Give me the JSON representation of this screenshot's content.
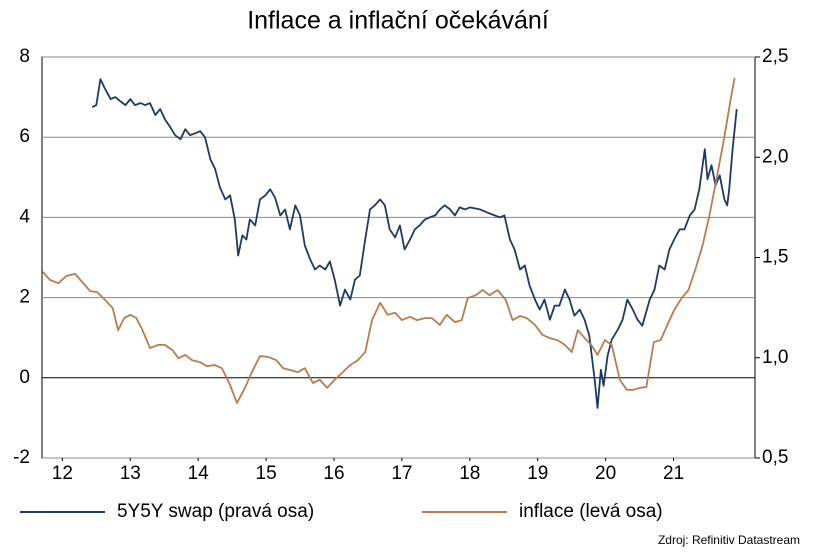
{
  "chart_data": {
    "type": "line",
    "title": "Inflace a inflační očekávání",
    "source": "Zdroj: Refinitiv Datastream",
    "xlim": [
      12.2,
      22.7
    ],
    "xticks": [
      {
        "value": 12.5,
        "label": "12"
      },
      {
        "value": 13.5,
        "label": "13"
      },
      {
        "value": 14.5,
        "label": "14"
      },
      {
        "value": 15.5,
        "label": "15"
      },
      {
        "value": 16.5,
        "label": "16"
      },
      {
        "value": 17.5,
        "label": "17"
      },
      {
        "value": 18.5,
        "label": "18"
      },
      {
        "value": 19.5,
        "label": "19"
      },
      {
        "value": 20.5,
        "label": "20"
      },
      {
        "value": 21.5,
        "label": "21"
      }
    ],
    "ylim": [
      -2,
      8
    ],
    "yticks": [
      -2,
      0,
      2,
      4,
      6,
      8
    ],
    "y2lim": [
      0.5,
      2.5
    ],
    "y2ticks": [
      {
        "value": 0.5,
        "label": "0,5"
      },
      {
        "value": 1.0,
        "label": "1,0"
      },
      {
        "value": 1.5,
        "label": "1,5"
      },
      {
        "value": 2.0,
        "label": "2,0"
      },
      {
        "value": 2.5,
        "label": "2,5"
      }
    ],
    "grid": true,
    "series": [
      {
        "name": "5Y5Y swap (pravá osa)",
        "color": "#1f3864",
        "axis": "y2",
        "x": [
          12.94,
          13,
          13.06,
          13.13,
          13.21,
          13.28,
          13.35,
          13.43,
          13.5,
          13.57,
          13.65,
          13.72,
          13.79,
          13.87,
          13.94,
          14.01,
          14.09,
          14.16,
          14.24,
          14.31,
          14.38,
          14.46,
          14.53,
          14.6,
          14.68,
          14.75,
          14.82,
          14.9,
          14.97,
          15.04,
          15.09,
          15.15,
          15.21,
          15.26,
          15.34,
          15.41,
          15.49,
          15.56,
          15.63,
          15.71,
          15.78,
          15.85,
          15.93,
          16,
          16.07,
          16.15,
          16.22,
          16.29,
          16.37,
          16.44,
          16.51,
          16.59,
          16.66,
          16.74,
          16.81,
          16.88,
          16.96,
          17.03,
          17.1,
          17.18,
          17.25,
          17.32,
          17.4,
          17.47,
          17.54,
          17.62,
          17.69,
          17.76,
          17.84,
          17.91,
          17.99,
          18.06,
          18.13,
          18.21,
          18.28,
          18.35,
          18.43,
          18.5,
          18.65,
          18.79,
          18.94,
          19.01,
          19.09,
          19.16,
          19.24,
          19.31,
          19.38,
          19.46,
          19.53,
          19.6,
          19.68,
          19.75,
          19.82,
          19.9,
          19.97,
          20.04,
          20.12,
          20.19,
          20.26,
          20.34,
          20.38,
          20.43,
          20.47,
          20.53,
          20.59,
          20.68,
          20.75,
          20.82,
          20.9,
          20.97,
          21.04,
          21.15,
          21.22,
          21.29,
          21.37,
          21.44,
          21.51,
          21.59,
          21.66,
          21.74,
          21.81,
          21.88,
          21.96,
          22,
          22.06,
          22.12,
          22.18,
          22.25,
          22.29,
          22.32,
          22.37,
          22.43
        ],
        "values": [
          2.25,
          2.26,
          2.39,
          2.34,
          2.29,
          2.3,
          2.28,
          2.26,
          2.29,
          2.26,
          2.27,
          2.26,
          2.27,
          2.21,
          2.24,
          2.19,
          2.15,
          2.11,
          2.09,
          2.14,
          2.11,
          2.12,
          2.13,
          2.1,
          1.99,
          1.94,
          1.85,
          1.79,
          1.81,
          1.69,
          1.51,
          1.61,
          1.59,
          1.69,
          1.66,
          1.79,
          1.81,
          1.84,
          1.8,
          1.71,
          1.74,
          1.64,
          1.76,
          1.71,
          1.56,
          1.49,
          1.44,
          1.46,
          1.44,
          1.48,
          1.39,
          1.26,
          1.34,
          1.29,
          1.39,
          1.41,
          1.59,
          1.74,
          1.76,
          1.79,
          1.76,
          1.64,
          1.6,
          1.66,
          1.54,
          1.59,
          1.64,
          1.66,
          1.69,
          1.7,
          1.71,
          1.74,
          1.76,
          1.74,
          1.71,
          1.75,
          1.74,
          1.75,
          1.74,
          1.72,
          1.7,
          1.71,
          1.59,
          1.54,
          1.44,
          1.46,
          1.36,
          1.29,
          1.24,
          1.29,
          1.19,
          1.26,
          1.26,
          1.34,
          1.29,
          1.21,
          1.24,
          1.19,
          1.11,
          0.89,
          0.75,
          0.94,
          0.86,
          1.01,
          1.09,
          1.14,
          1.19,
          1.29,
          1.24,
          1.19,
          1.16,
          1.29,
          1.34,
          1.46,
          1.44,
          1.54,
          1.59,
          1.64,
          1.64,
          1.71,
          1.74,
          1.84,
          2.04,
          1.89,
          1.96,
          1.86,
          1.91,
          1.79,
          1.76,
          1.84,
          2.04,
          2.24
        ]
      },
      {
        "name": "inflace (levá osa)",
        "color": "#b87c4f",
        "x": [
          12.21,
          12.32,
          12.44,
          12.56,
          12.69,
          12.79,
          12.91,
          13.01,
          13.13,
          13.24,
          13.32,
          13.41,
          13.5,
          13.59,
          13.68,
          13.79,
          13.91,
          14.01,
          14.12,
          14.21,
          14.31,
          14.41,
          14.53,
          14.63,
          14.74,
          14.85,
          14.97,
          15.07,
          15.19,
          15.29,
          15.41,
          15.53,
          15.65,
          15.75,
          15.87,
          15.97,
          16.07,
          16.19,
          16.29,
          16.4,
          16.51,
          16.63,
          16.74,
          16.85,
          16.96,
          17.06,
          17.18,
          17.29,
          17.4,
          17.5,
          17.62,
          17.72,
          17.84,
          17.94,
          18.06,
          18.16,
          18.28,
          18.38,
          18.47,
          18.59,
          18.69,
          18.79,
          18.91,
          19.03,
          19.13,
          19.24,
          19.34,
          19.46,
          19.57,
          19.68,
          19.79,
          19.9,
          20,
          20.09,
          20.19,
          20.29,
          20.38,
          20.49,
          20.59,
          20.71,
          20.81,
          20.91,
          21.01,
          21.1,
          21.21,
          21.31,
          21.41,
          21.51,
          21.62,
          21.72,
          21.82,
          21.93,
          22.03,
          22.13,
          22.24,
          22.34,
          22.4
        ],
        "values": [
          2.64,
          2.44,
          2.36,
          2.54,
          2.59,
          2.39,
          2.16,
          2.14,
          1.94,
          1.74,
          1.19,
          1.49,
          1.57,
          1.49,
          1.19,
          0.74,
          0.82,
          0.82,
          0.69,
          0.49,
          0.57,
          0.44,
          0.39,
          0.29,
          0.32,
          0.24,
          -0.18,
          -0.63,
          -0.25,
          0.14,
          0.54,
          0.52,
          0.44,
          0.24,
          0.19,
          0.14,
          0.24,
          -0.13,
          -0.05,
          -0.25,
          -0.05,
          0.14,
          0.32,
          0.44,
          0.64,
          1.44,
          1.87,
          1.57,
          1.62,
          1.44,
          1.52,
          1.44,
          1.49,
          1.49,
          1.32,
          1.57,
          1.39,
          1.44,
          1.99,
          2.06,
          2.19,
          2.06,
          2.19,
          1.94,
          1.44,
          1.54,
          1.49,
          1.32,
          1.07,
          0.99,
          0.94,
          0.82,
          0.64,
          1.19,
          0.99,
          0.82,
          0.57,
          0.94,
          0.82,
          -0.05,
          -0.3,
          -0.3,
          -0.25,
          -0.23,
          0.89,
          0.94,
          1.32,
          1.69,
          1.99,
          2.19,
          2.69,
          3.31,
          4.06,
          4.93,
          5.93,
          6.93,
          7.48
        ]
      }
    ]
  }
}
